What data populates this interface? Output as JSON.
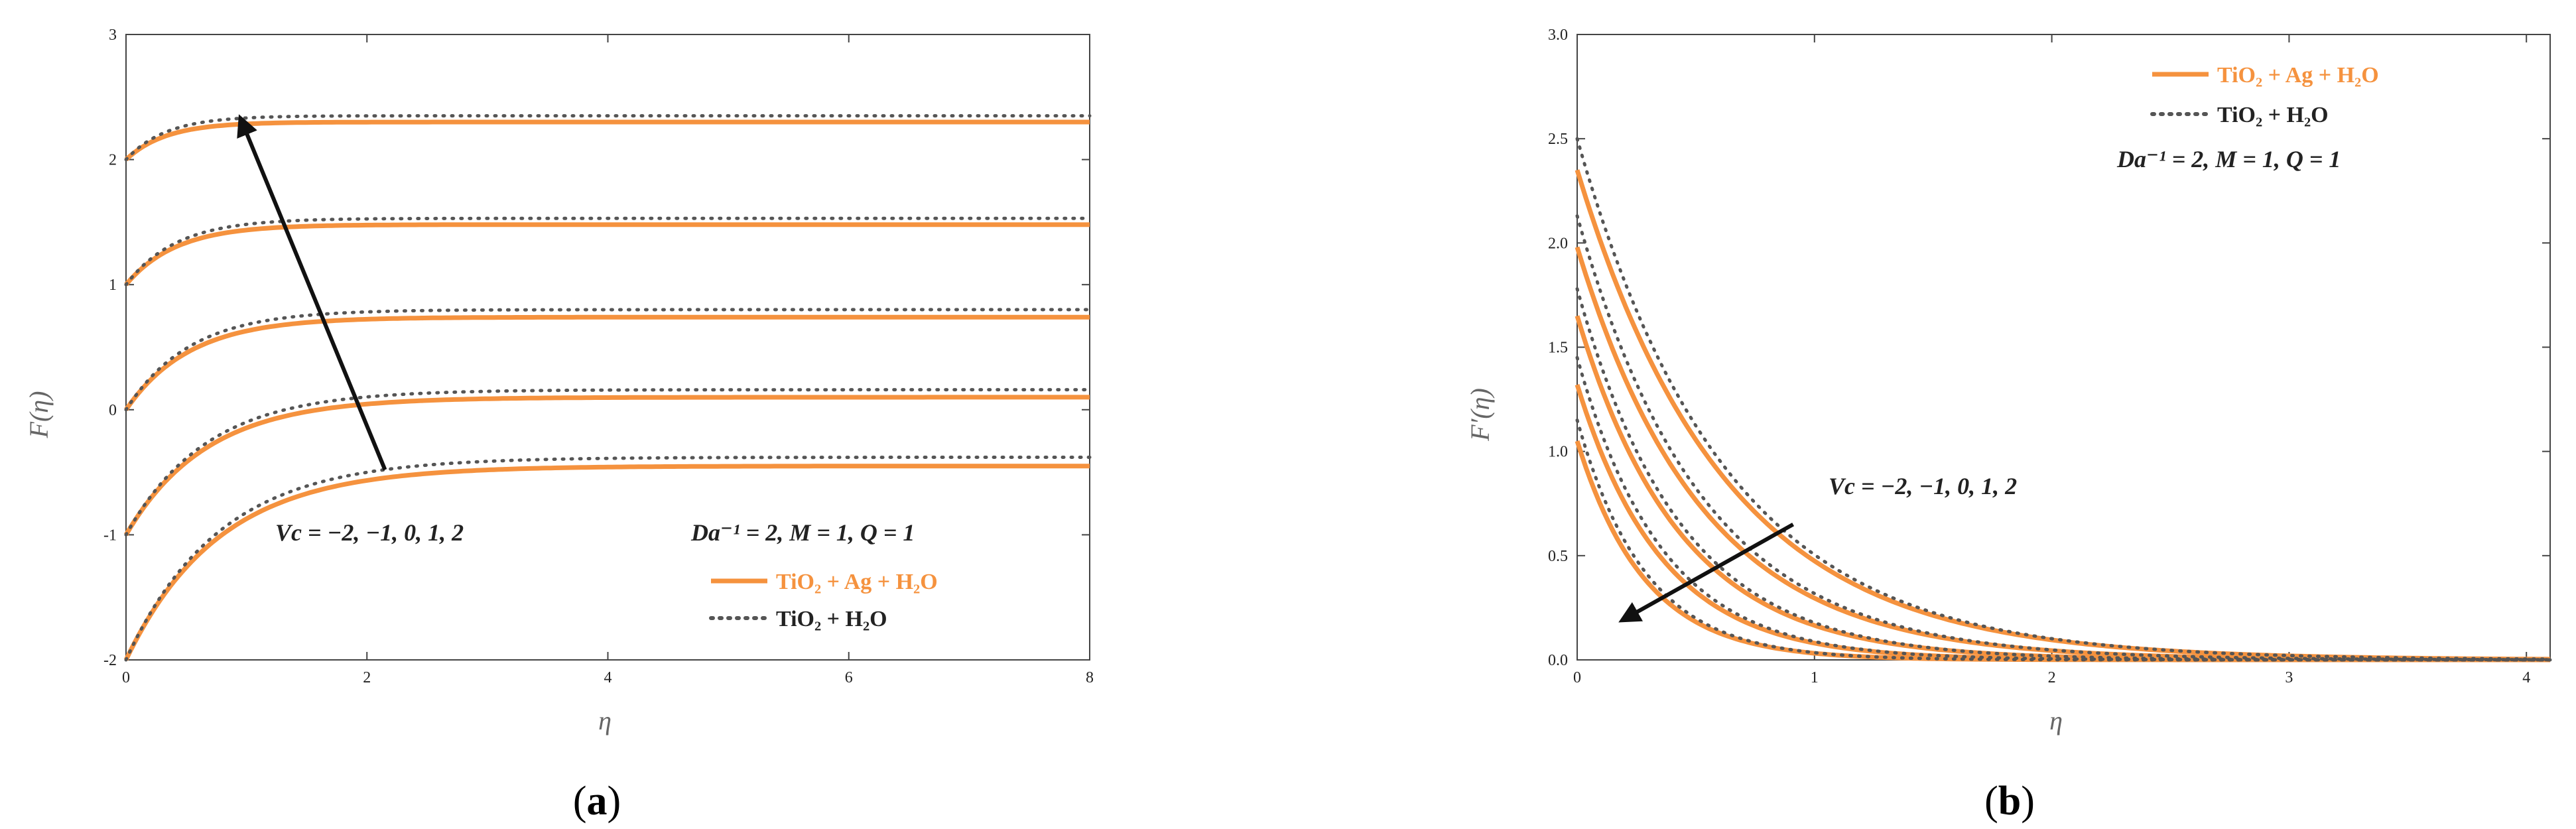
{
  "chart_data": [
    {
      "panel_label": "a",
      "type": "line",
      "title": "",
      "xlabel": "η",
      "ylabel": "F(η)",
      "xlim": [
        0,
        8
      ],
      "ylim": [
        -2,
        3
      ],
      "xticks": [
        "0",
        "2",
        "4",
        "6",
        "8"
      ],
      "yticks": [
        "-2",
        "-1",
        "0",
        "1",
        "2",
        "3"
      ],
      "curve_model": "F(η) = F_inf − (F_inf − F0)·exp(−k·η)",
      "series": [
        {
          "name": "TiO2 + Ag + H2O",
          "style": "solid",
          "color": "#F5923E",
          "curves": [
            {
              "Vc": -2,
              "F0": -2,
              "F_inf": -0.45,
              "k": 1.3
            },
            {
              "Vc": -1,
              "F0": -1,
              "F_inf": 0.1,
              "k": 1.5
            },
            {
              "Vc": 0,
              "F0": 0,
              "F_inf": 0.74,
              "k": 1.9
            },
            {
              "Vc": 1,
              "F0": 1,
              "F_inf": 1.48,
              "k": 2.4
            },
            {
              "Vc": 2,
              "F0": 2,
              "F_inf": 2.3,
              "k": 3.0
            }
          ]
        },
        {
          "name": "TiO2 + H2O",
          "style": "dotted",
          "color": "#555555",
          "curves": [
            {
              "Vc": -2,
              "F0": -2,
              "F_inf": -0.38,
              "k": 1.3
            },
            {
              "Vc": -1,
              "F0": -1,
              "F_inf": 0.16,
              "k": 1.5
            },
            {
              "Vc": 0,
              "F0": 0,
              "F_inf": 0.8,
              "k": 1.9
            },
            {
              "Vc": 1,
              "F0": 1,
              "F_inf": 1.53,
              "k": 2.4
            },
            {
              "Vc": 2,
              "F0": 2,
              "F_inf": 2.35,
              "k": 3.0
            }
          ]
        }
      ],
      "arrow": {
        "from": [
          2.15,
          -0.48
        ],
        "to": [
          0.95,
          2.33
        ],
        "label": "Vc = −2, −1, 0, 1, 2"
      },
      "params_label": "Da⁻¹ = 2, M = 1, Q = 1",
      "legend": [
        {
          "text": "TiO₂ + Ag + H₂O",
          "style": "solid",
          "color": "#F5923E"
        },
        {
          "text": "TiO₂ + H₂O",
          "style": "dotted",
          "color": "#555555"
        }
      ],
      "legend_placement": "bottom-right"
    },
    {
      "panel_label": "b",
      "type": "line",
      "title": "",
      "xlabel": "η",
      "ylabel": "F′(η)",
      "xlim": [
        0,
        4.1
      ],
      "ylim": [
        0,
        3.0
      ],
      "xticks": [
        "0",
        "1",
        "2",
        "3",
        "4"
      ],
      "yticks": [
        "0.0",
        "0.5",
        "1.0",
        "1.5",
        "2.0",
        "2.5",
        "3.0"
      ],
      "curve_model": "F′(η) = A·exp(−k·η)",
      "series": [
        {
          "name": "TiO2 + Ag + H2O",
          "style": "solid",
          "color": "#F5923E",
          "curves": [
            {
              "Vc": -2,
              "A": 2.35,
              "k": 1.6
            },
            {
              "Vc": -1,
              "A": 1.98,
              "k": 1.9
            },
            {
              "Vc": 0,
              "A": 1.65,
              "k": 2.3
            },
            {
              "Vc": 1,
              "A": 1.32,
              "k": 2.8
            },
            {
              "Vc": 2,
              "A": 1.05,
              "k": 3.5
            }
          ]
        },
        {
          "name": "TiO2 + H2O",
          "style": "dotted",
          "color": "#555555",
          "curves": [
            {
              "Vc": -2,
              "A": 2.5,
              "k": 1.6
            },
            {
              "Vc": -1,
              "A": 2.13,
              "k": 1.9
            },
            {
              "Vc": 0,
              "A": 1.78,
              "k": 2.3
            },
            {
              "Vc": 1,
              "A": 1.45,
              "k": 2.8
            },
            {
              "Vc": 2,
              "A": 1.15,
              "k": 3.5
            }
          ]
        }
      ],
      "arrow": {
        "from": [
          0.91,
          0.65
        ],
        "to": [
          0.19,
          0.19
        ],
        "label": "Vc = −2, −1, 0, 1, 2"
      },
      "params_label": "Da⁻¹ = 2, M = 1, Q = 1",
      "legend": [
        {
          "text": "TiO₂ + Ag + H₂O",
          "style": "solid",
          "color": "#F5923E"
        },
        {
          "text": "TiO₂ + H₂O",
          "style": "dotted",
          "color": "#555555"
        }
      ],
      "legend_placement": "top-right"
    }
  ]
}
